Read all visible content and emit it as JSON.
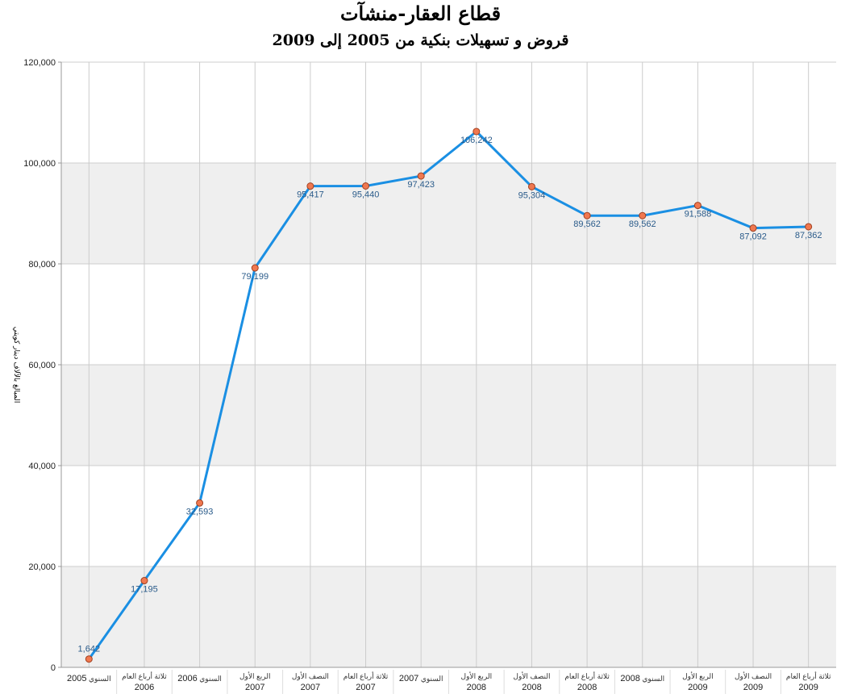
{
  "chart_data": {
    "type": "line",
    "title": "قطاع العقار-منشآت",
    "subtitle": "قروض و تسهيلات بنكية من 2005 إلى 2009",
    "ylabel": "المبالغ بالآلاف دينار كويتي",
    "xlabel": "",
    "ylim": [
      0,
      120000
    ],
    "yticks": [
      "0",
      "20,000",
      "40,000",
      "60,000",
      "80,000",
      "100,000",
      "120,000"
    ],
    "grid": true,
    "categories": [
      {
        "period": "السنوي",
        "year": "2005",
        "single_line": true
      },
      {
        "period": "ثلاثة أرباع العام",
        "year": "2006",
        "single_line": false
      },
      {
        "period": "السنوي",
        "year": "2006",
        "single_line": true
      },
      {
        "period": "الربع الأول",
        "year": "2007",
        "single_line": false
      },
      {
        "period": "النصف الأول",
        "year": "2007",
        "single_line": false
      },
      {
        "period": "ثلاثة أرباع العام",
        "year": "2007",
        "single_line": false
      },
      {
        "period": "السنوي",
        "year": "2007",
        "single_line": true
      },
      {
        "period": "الربع الأول",
        "year": "2008",
        "single_line": false
      },
      {
        "period": "النصف الأول",
        "year": "2008",
        "single_line": false
      },
      {
        "period": "ثلاثة أرباع العام",
        "year": "2008",
        "single_line": false
      },
      {
        "period": "السنوي",
        "year": "2008",
        "single_line": true
      },
      {
        "period": "الربع الأول",
        "year": "2009",
        "single_line": false
      },
      {
        "period": "النصف الأول",
        "year": "2009",
        "single_line": false
      },
      {
        "period": "ثلاثة أرباع العام",
        "year": "2009",
        "single_line": false
      }
    ],
    "values": [
      1642,
      17195,
      32593,
      79199,
      95417,
      95440,
      97423,
      106242,
      95304,
      89562,
      89562,
      91588,
      87092,
      87362
    ],
    "labels": [
      "1,642",
      "17,195",
      "32,593",
      "79,199",
      "95,417",
      "95,440",
      "97,423",
      "106,242",
      "95,304",
      "89,562",
      "89,562",
      "91,588",
      "87,092",
      "87,362"
    ],
    "colors": {
      "line": "#1a8fe3",
      "marker_fill": "#f07850",
      "marker_stroke": "#a04020",
      "band": "#efefef",
      "grid": "#cccccc",
      "data_label": "#2a5b8a"
    }
  }
}
